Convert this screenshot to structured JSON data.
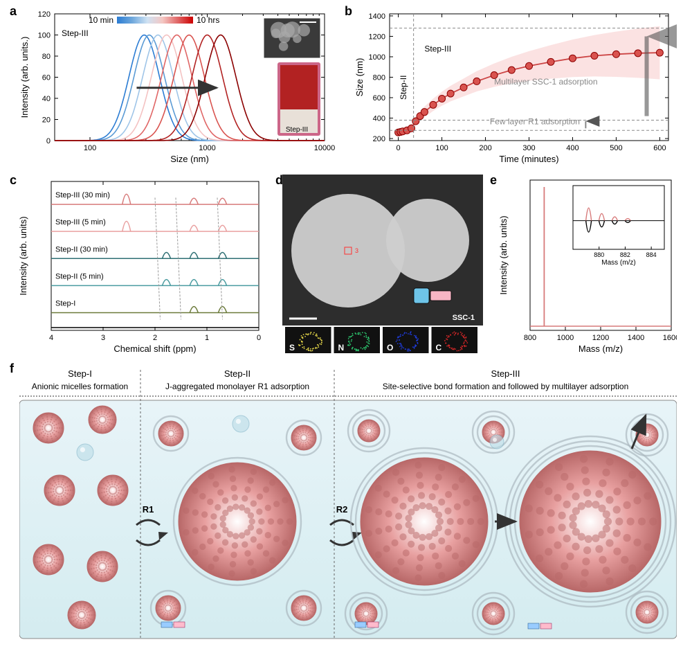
{
  "panel_a": {
    "label": "a",
    "type": "line",
    "xaxis": {
      "label": "Size (nm)",
      "log": true,
      "min": 50,
      "max": 10000,
      "ticks": [
        100,
        1000,
        10000
      ]
    },
    "yaxis": {
      "label": "Intensity (arb. units.)",
      "min": 0,
      "max": 120,
      "ticks": [
        0,
        20,
        40,
        60,
        80,
        100,
        120
      ]
    },
    "gradient_label_left": "10 min",
    "gradient_label_right": "10 hrs",
    "gradient_colors": [
      "#2b7cd3",
      "#6fa8dc",
      "#cfe2f3",
      "#f4c7c3",
      "#e06666",
      "#cc0000"
    ],
    "series": [
      {
        "peak_x": 290,
        "color": "#2b7cd3"
      },
      {
        "peak_x": 320,
        "color": "#5b9bd5"
      },
      {
        "peak_x": 380,
        "color": "#9fc5e8"
      },
      {
        "peak_x": 450,
        "color": "#f4c2c2"
      },
      {
        "peak_x": 550,
        "color": "#e06666"
      },
      {
        "peak_x": 700,
        "color": "#d9534f"
      },
      {
        "peak_x": 1000,
        "color": "#b22222"
      },
      {
        "peak_x": 1300,
        "color": "#8b0000"
      }
    ],
    "step_label": "Step-III",
    "inset_label": "Step-III",
    "inset_top_color": "#4a4a4a",
    "inset_bottom_color": "#b22222",
    "title_fontsize": 13,
    "label_fontsize": 13,
    "tick_fontsize": 11
  },
  "panel_b": {
    "label": "b",
    "type": "scatter-line",
    "xaxis": {
      "label": "Time (minutes)",
      "min": -20,
      "max": 620,
      "ticks": [
        0,
        100,
        200,
        300,
        400,
        500,
        600
      ]
    },
    "yaxis": {
      "label": "Size (nm)",
      "min": 180,
      "max": 1420,
      "ticks": [
        200,
        400,
        600,
        800,
        1000,
        1200,
        1400
      ]
    },
    "points": [
      {
        "x": 0,
        "y": 260
      },
      {
        "x": 5,
        "y": 265
      },
      {
        "x": 10,
        "y": 270
      },
      {
        "x": 20,
        "y": 280
      },
      {
        "x": 30,
        "y": 300
      },
      {
        "x": 40,
        "y": 370
      },
      {
        "x": 50,
        "y": 420
      },
      {
        "x": 60,
        "y": 460
      },
      {
        "x": 80,
        "y": 530
      },
      {
        "x": 100,
        "y": 590
      },
      {
        "x": 120,
        "y": 640
      },
      {
        "x": 150,
        "y": 700
      },
      {
        "x": 180,
        "y": 760
      },
      {
        "x": 220,
        "y": 820
      },
      {
        "x": 260,
        "y": 870
      },
      {
        "x": 300,
        "y": 910
      },
      {
        "x": 350,
        "y": 950
      },
      {
        "x": 400,
        "y": 985
      },
      {
        "x": 450,
        "y": 1010
      },
      {
        "x": 500,
        "y": 1025
      },
      {
        "x": 550,
        "y": 1035
      },
      {
        "x": 600,
        "y": 1040
      }
    ],
    "band_color": "#f7c6c6",
    "line_color": "#c44",
    "marker_color": "#d9534f",
    "marker_edge": "#8b0000",
    "marker_size": 5,
    "annotations": {
      "step2": "Step-II",
      "step3": "Step-III",
      "multilayer": "Multilayer SSC-1 adsorption",
      "fewlayer": "Few layer R1 adsorption"
    },
    "dash_x": 35,
    "dash_y1": 280,
    "dash_y2": 380,
    "dash_y3": 1280
  },
  "panel_c": {
    "label": "c",
    "type": "stacked-nmr",
    "xaxis": {
      "label": "Chemical shift (ppm)",
      "min": 0,
      "max": 4,
      "ticks": [
        0,
        1,
        2,
        3,
        4
      ]
    },
    "yaxis": {
      "label": "Intensity (arb. units)"
    },
    "traces": [
      {
        "label": "Step-III (30 min)",
        "color": "#d77a7a",
        "peaks": [
          2.55,
          1.25,
          0.7
        ]
      },
      {
        "label": "Step-III (5 min)",
        "color": "#e9a0a0",
        "peaks": [
          2.55,
          1.25,
          0.7
        ]
      },
      {
        "label": "Step-II (30 min)",
        "color": "#2e6f73",
        "peaks": [
          1.78,
          1.25,
          0.7
        ]
      },
      {
        "label": "Step-II (5 min)",
        "color": "#4a9ba0",
        "peaks": [
          1.78,
          1.25,
          0.7
        ]
      },
      {
        "label": "Step-I",
        "color": "#6b7a3a",
        "peaks": [
          1.25,
          0.7
        ]
      }
    ]
  },
  "panel_d": {
    "label": "d",
    "bg_color": "#2d2d2d",
    "sphere_fill": "#cfcfcf",
    "ssc_label": "SSC-1",
    "elements": [
      {
        "label": "S",
        "color": "#e6d84a"
      },
      {
        "label": "N",
        "color": "#2ecc71"
      },
      {
        "label": "O",
        "color": "#1f3bd6"
      },
      {
        "label": "C",
        "color": "#d62728"
      }
    ]
  },
  "panel_e": {
    "label": "e",
    "type": "mass-spectrum",
    "xaxis": {
      "label": "Mass (m/z)",
      "min": 800,
      "max": 1600,
      "ticks": [
        800,
        1000,
        1200,
        1400,
        1600
      ]
    },
    "yaxis": {
      "label": "Intensity (arb. units)"
    },
    "main_peak": 880,
    "line_color": "#d77a7a",
    "inset": {
      "xaxis": {
        "label": "Mass (m/z)",
        "min": 878,
        "max": 885,
        "ticks": [
          880,
          882,
          884
        ]
      },
      "pos_color": "#d77a7a",
      "neg_color": "#000",
      "peaks": [
        879.2,
        880.2,
        881.2,
        882.2
      ]
    }
  },
  "panel_f": {
    "label": "f",
    "bg_gradient": [
      "#e8f4f8",
      "#d4ecf0"
    ],
    "sphere_color": "#e8a0a0",
    "sphere_edge": "#b86868",
    "bubble_color": "#bcdde8",
    "columns": [
      {
        "title": "Step-I",
        "subtitle": "Anionic micelles formation"
      },
      {
        "title": "Step-II",
        "subtitle": "J-aggregated monolayer R1 adsorption",
        "arrow_label": "R1"
      },
      {
        "title": "Step-III",
        "subtitle": "Site-selective bond formation and followed by multilayer adsorption",
        "arrow_label": "R2"
      }
    ]
  }
}
